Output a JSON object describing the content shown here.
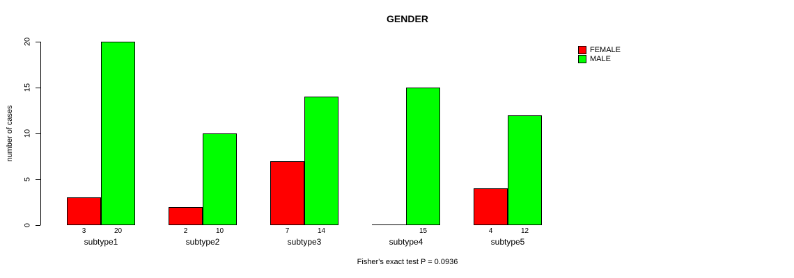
{
  "chart_data": {
    "type": "bar",
    "title": "GENDER",
    "ylabel": "number of cases",
    "xlabel": "",
    "footnote": "Fisher's exact test P = 0.0936",
    "categories": [
      "subtype1",
      "subtype2",
      "subtype3",
      "subtype4",
      "subtype5"
    ],
    "series": [
      {
        "name": "FEMALE",
        "color": "#ff0000",
        "values": [
          3,
          2,
          7,
          0,
          4
        ],
        "bar_labels": [
          "3",
          "2",
          "7",
          "",
          "4"
        ]
      },
      {
        "name": "MALE",
        "color": "#00ff00",
        "values": [
          20,
          10,
          14,
          15,
          12
        ],
        "bar_labels": [
          "20",
          "10",
          "14",
          "15",
          "12"
        ]
      }
    ],
    "ylim": [
      0,
      20
    ],
    "yticks": [
      0,
      5,
      10,
      15,
      20
    ],
    "legend_position": "top-right",
    "grid": false,
    "bar_border_color": "#000000",
    "axis_color": "#000000"
  }
}
